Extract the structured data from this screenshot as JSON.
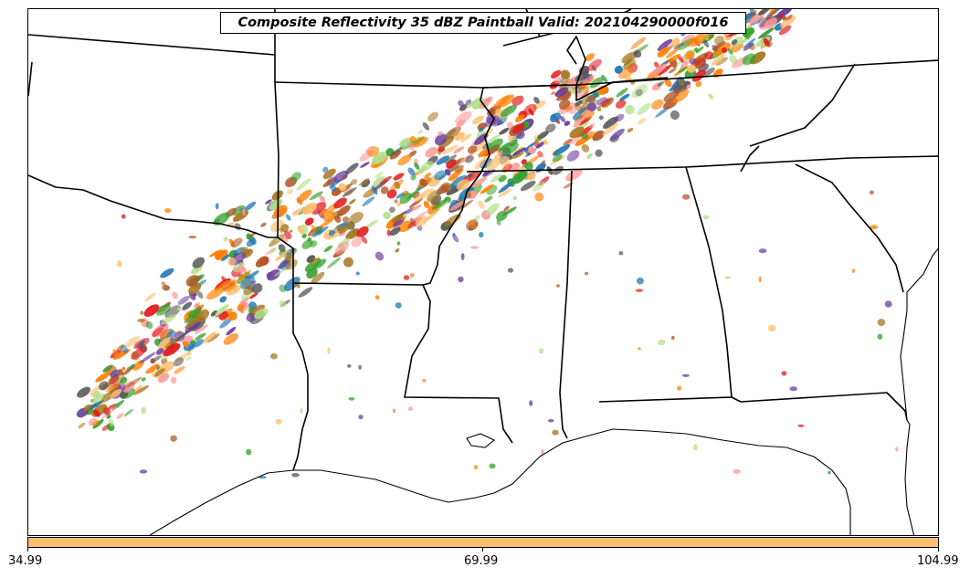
{
  "title": "Composite Reflectivity 35 dBZ Paintball Valid: 202104290000f016",
  "colorbar": {
    "color": "#fdbf6f",
    "ticks": [
      "34.99",
      "69.99",
      "104.99"
    ]
  },
  "paintball_colors": [
    "#e31a1c",
    "#ff7f00",
    "#33a02c",
    "#fdbf6f",
    "#6a3d9a",
    "#b2df8a",
    "#fb9a99",
    "#b15928",
    "#1f78b4",
    "#a6761d",
    "#555555"
  ],
  "map": {
    "region": "Southern United States",
    "boundary_color": "#000000"
  }
}
